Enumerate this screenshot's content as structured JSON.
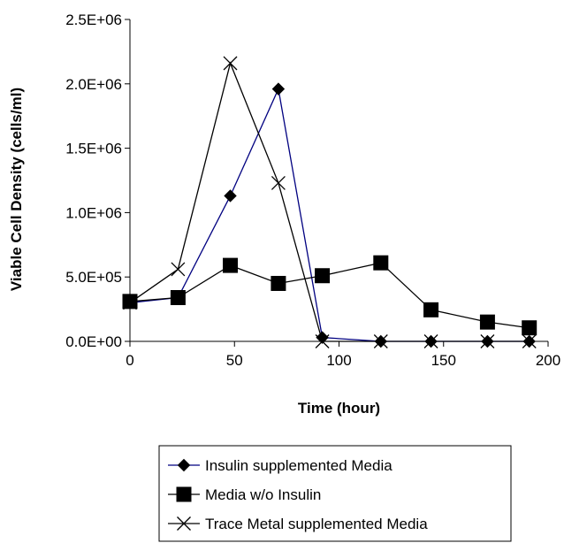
{
  "chart_data": {
    "type": "line",
    "title": "",
    "xlabel": "Time (hour)",
    "ylabel": "Viable Cell Density (cells/ml)",
    "xlim": [
      0,
      200
    ],
    "ylim": [
      0,
      2500000
    ],
    "x_ticks": [
      0,
      50,
      100,
      150,
      200
    ],
    "x_tick_labels": [
      "0",
      "50",
      "100",
      "150",
      "200"
    ],
    "y_ticks": [
      0,
      500000,
      1000000,
      1500000,
      2000000,
      2500000
    ],
    "y_tick_labels": [
      "0.0E+00",
      "5.0E+05",
      "1.0E+06",
      "1.5E+06",
      "2.0E+06",
      "2.5E+06"
    ],
    "grid": false,
    "legend_position": "bottom",
    "series": [
      {
        "name": "Insulin supplemented Media",
        "marker": "diamond",
        "color": "#000080",
        "x": [
          0,
          23,
          48,
          71,
          92,
          120,
          144,
          171,
          191
        ],
        "y": [
          300000,
          340000,
          1130000,
          1960000,
          30000,
          0,
          0,
          0,
          0
        ]
      },
      {
        "name": "Media w/o Insulin",
        "marker": "square",
        "color": "#000000",
        "x": [
          0,
          23,
          48,
          71,
          92,
          120,
          144,
          171,
          191
        ],
        "y": [
          310000,
          340000,
          590000,
          450000,
          510000,
          610000,
          245000,
          150000,
          105000
        ]
      },
      {
        "name": "Trace Metal supplemented Media",
        "marker": "x",
        "color": "#000000",
        "x": [
          0,
          23,
          48,
          71,
          92,
          120,
          144,
          171,
          191
        ],
        "y": [
          300000,
          560000,
          2160000,
          1230000,
          0,
          0,
          0,
          0,
          0
        ]
      }
    ]
  }
}
